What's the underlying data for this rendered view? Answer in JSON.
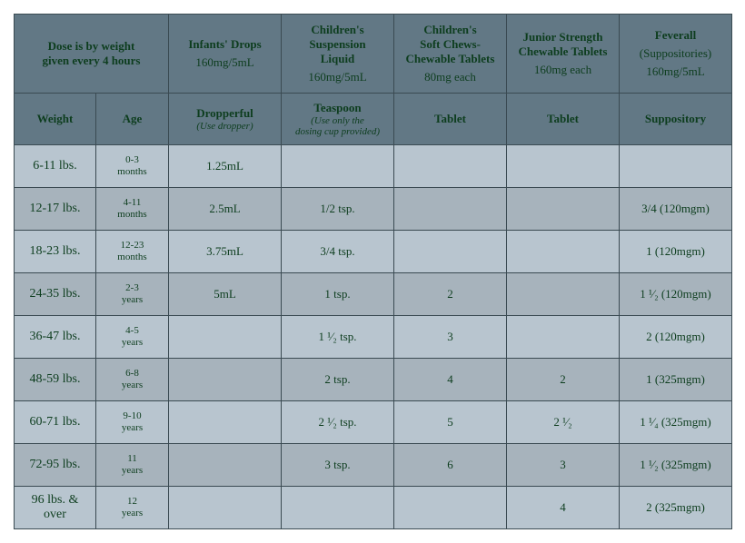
{
  "colors": {
    "header_bg": "#627885",
    "row_a": "#b8c5cf",
    "row_b": "#a7b3bc",
    "text": "#0d3d1e",
    "border": "#3a4a52"
  },
  "header1": {
    "dose_note_l1": "Dose is by weight",
    "dose_note_l2": "given every 4 hours",
    "cols": [
      {
        "title": "Infants' Drops",
        "sub": "160mg/5mL"
      },
      {
        "title_l1": "Children's",
        "title_l2": "Suspension",
        "title_l3": "Liquid",
        "sub": "160mg/5mL"
      },
      {
        "title_l1": "Children's",
        "title_l2": "Soft Chews-",
        "title_l3": "Chewable Tablets",
        "sub": "80mg each"
      },
      {
        "title_l1": "Junior Strength",
        "title_l2": "Chewable Tablets",
        "sub": "160mg each"
      },
      {
        "title": "Feverall",
        "title_paren": "(Suppositories)",
        "sub": "160mg/5mL"
      }
    ]
  },
  "header2": {
    "weight": "Weight",
    "age": "Age",
    "cols": [
      {
        "title": "Dropperful",
        "em": "(Use dropper)"
      },
      {
        "title": "Teaspoon",
        "em_l1": "(Use only the",
        "em_l2": "dosing cup provided)"
      },
      {
        "title": "Tablet"
      },
      {
        "title": "Tablet"
      },
      {
        "title": "Suppository"
      }
    ]
  },
  "rows": [
    {
      "weight": "6-11 lbs.",
      "age_l1": "0-3",
      "age_l2": "months",
      "c": [
        "1.25mL",
        "",
        "",
        "",
        ""
      ]
    },
    {
      "weight": "12-17 lbs.",
      "age_l1": "4-11",
      "age_l2": "months",
      "c": [
        "2.5mL",
        "1/2 tsp.",
        "",
        "",
        "3/4 (120mgm)"
      ]
    },
    {
      "weight": "18-23 lbs.",
      "age_l1": "12-23",
      "age_l2": "months",
      "c": [
        "3.75mL",
        "3/4 tsp.",
        "",
        "",
        "1 (120mgm)"
      ]
    },
    {
      "weight": "24-35 lbs.",
      "age_l1": "2-3",
      "age_l2": "years",
      "c": [
        "5mL",
        "1 tsp.",
        "2",
        "",
        "1 ¹⁄₂ (120mgm)"
      ]
    },
    {
      "weight": "36-47 lbs.",
      "age_l1": "4-5",
      "age_l2": "years",
      "c": [
        "",
        "1 ¹⁄₂ tsp.",
        "3",
        "",
        "2 (120mgm)"
      ]
    },
    {
      "weight": "48-59 lbs.",
      "age_l1": "6-8",
      "age_l2": "years",
      "c": [
        "",
        "2 tsp.",
        "4",
        "2",
        "1 (325mgm)"
      ]
    },
    {
      "weight": "60-71 lbs.",
      "age_l1": "9-10",
      "age_l2": "years",
      "c": [
        "",
        "2 ¹⁄₂ tsp.",
        "5",
        "2 ¹⁄₂",
        "1 ¹⁄₄ (325mgm)"
      ]
    },
    {
      "weight": "72-95 lbs.",
      "age_l1": "11",
      "age_l2": "years",
      "c": [
        "",
        "3 tsp.",
        "6",
        "3",
        "1 ¹⁄₂ (325mgm)"
      ]
    },
    {
      "weight_l1": "96 lbs. &",
      "weight_l2": "over",
      "age_l1": "12",
      "age_l2": "years",
      "c": [
        "",
        "",
        "",
        "4",
        "2 (325mgm)"
      ]
    }
  ]
}
